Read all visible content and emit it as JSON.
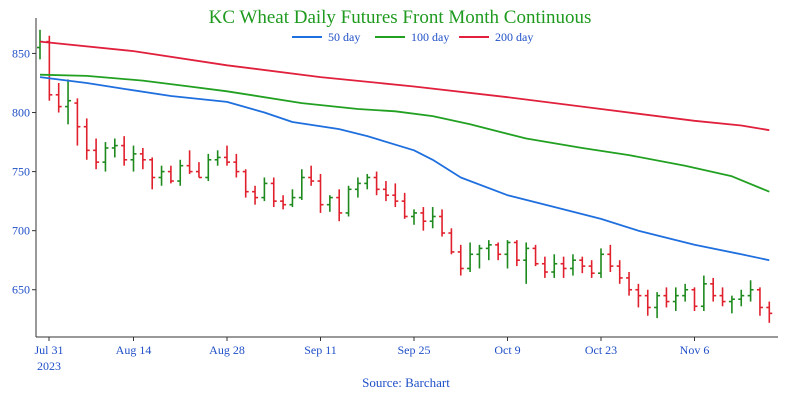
{
  "chart_data": {
    "type": "ohlc_with_moving_averages",
    "title": "KC Wheat Daily Futures Front Month Continuous",
    "source": "Source: Barchart",
    "xlabel": "",
    "ylabel": "",
    "ylim": [
      610,
      880
    ],
    "y_ticks": [
      650,
      700,
      750,
      800,
      850
    ],
    "x_ticks": [
      {
        "label": "Jul 31",
        "sublabel": "2023",
        "index": 0
      },
      {
        "label": "Aug 14",
        "index": 10
      },
      {
        "label": "Aug 28",
        "index": 20
      },
      {
        "label": "Sep 11",
        "index": 30
      },
      {
        "label": "Sep 25",
        "index": 40
      },
      {
        "label": "Oct 9",
        "index": 50
      },
      {
        "label": "Oct 23",
        "index": 60
      },
      {
        "label": "Nov 6",
        "index": 70
      }
    ],
    "grid": false,
    "legend_position": "top-center",
    "colors": {
      "up": "#1e8a1e",
      "down": "#e0202c",
      "ma50": "#1f6fde",
      "ma100": "#22a022",
      "ma200": "#e0203c"
    },
    "series": [
      {
        "name": "50 day",
        "color": "#1f6fde",
        "points": [
          [
            0,
            830
          ],
          [
            5,
            825
          ],
          [
            9,
            820
          ],
          [
            14,
            814
          ],
          [
            20,
            809
          ],
          [
            24,
            800
          ],
          [
            27,
            792
          ],
          [
            32,
            786
          ],
          [
            35,
            780
          ],
          [
            40,
            768
          ],
          [
            42,
            760
          ],
          [
            45,
            745
          ],
          [
            50,
            730
          ],
          [
            55,
            720
          ],
          [
            60,
            710
          ],
          [
            64,
            700
          ],
          [
            70,
            688
          ],
          [
            75,
            680
          ],
          [
            78,
            675
          ]
        ]
      },
      {
        "name": "100 day",
        "color": "#22a022",
        "points": [
          [
            0,
            832
          ],
          [
            5,
            831
          ],
          [
            11,
            827
          ],
          [
            16,
            822
          ],
          [
            20,
            818
          ],
          [
            28,
            808
          ],
          [
            34,
            803
          ],
          [
            38,
            801
          ],
          [
            42,
            797
          ],
          [
            46,
            790
          ],
          [
            52,
            778
          ],
          [
            58,
            770
          ],
          [
            63,
            764
          ],
          [
            69,
            755
          ],
          [
            74,
            746
          ],
          [
            78,
            733
          ]
        ]
      },
      {
        "name": "200 day",
        "color": "#e0203c",
        "points": [
          [
            0,
            860
          ],
          [
            10,
            852
          ],
          [
            20,
            840
          ],
          [
            30,
            830
          ],
          [
            40,
            822
          ],
          [
            50,
            813
          ],
          [
            60,
            803
          ],
          [
            70,
            793
          ],
          [
            75,
            789
          ],
          [
            78,
            785
          ]
        ]
      }
    ],
    "ohlc": [
      [
        0,
        855,
        870,
        845,
        860
      ],
      [
        1,
        860,
        865,
        810,
        815
      ],
      [
        2,
        815,
        825,
        800,
        805
      ],
      [
        3,
        805,
        828,
        790,
        810
      ],
      [
        4,
        808,
        812,
        772,
        788
      ],
      [
        5,
        788,
        795,
        760,
        768
      ],
      [
        6,
        768,
        778,
        752,
        758
      ],
      [
        7,
        758,
        775,
        750,
        770
      ],
      [
        8,
        770,
        778,
        762,
        772
      ],
      [
        9,
        772,
        780,
        755,
        760
      ],
      [
        10,
        760,
        772,
        750,
        765
      ],
      [
        11,
        765,
        770,
        752,
        760
      ],
      [
        12,
        760,
        762,
        735,
        745
      ],
      [
        13,
        745,
        755,
        738,
        750
      ],
      [
        14,
        750,
        755,
        740,
        742
      ],
      [
        15,
        742,
        760,
        738,
        755
      ],
      [
        16,
        755,
        768,
        748,
        750
      ],
      [
        17,
        750,
        758,
        745,
        745
      ],
      [
        18,
        745,
        765,
        742,
        760
      ],
      [
        19,
        760,
        768,
        755,
        762
      ],
      [
        20,
        762,
        772,
        755,
        758
      ],
      [
        21,
        758,
        765,
        745,
        750
      ],
      [
        22,
        750,
        752,
        728,
        733
      ],
      [
        23,
        733,
        738,
        722,
        728
      ],
      [
        24,
        728,
        745,
        725,
        740
      ],
      [
        25,
        740,
        745,
        720,
        725
      ],
      [
        26,
        725,
        730,
        718,
        722
      ],
      [
        27,
        722,
        735,
        720,
        728
      ],
      [
        28,
        728,
        752,
        726,
        745
      ],
      [
        29,
        745,
        755,
        738,
        742
      ],
      [
        30,
        742,
        748,
        715,
        722
      ],
      [
        31,
        722,
        730,
        716,
        728
      ],
      [
        32,
        728,
        735,
        708,
        715
      ],
      [
        33,
        715,
        738,
        712,
        735
      ],
      [
        34,
        735,
        745,
        728,
        740
      ],
      [
        35,
        740,
        748,
        735,
        745
      ],
      [
        36,
        745,
        750,
        730,
        735
      ],
      [
        37,
        735,
        742,
        725,
        730
      ],
      [
        38,
        730,
        740,
        720,
        725
      ],
      [
        39,
        725,
        732,
        710,
        712
      ],
      [
        40,
        712,
        718,
        705,
        715
      ],
      [
        41,
        715,
        720,
        700,
        708
      ],
      [
        42,
        708,
        720,
        702,
        712
      ],
      [
        43,
        712,
        718,
        695,
        698
      ],
      [
        44,
        698,
        702,
        680,
        682
      ],
      [
        45,
        682,
        688,
        662,
        668
      ],
      [
        46,
        668,
        690,
        665,
        680
      ],
      [
        47,
        680,
        688,
        668,
        685
      ],
      [
        48,
        685,
        692,
        675,
        688
      ],
      [
        49,
        688,
        690,
        675,
        680
      ],
      [
        50,
        680,
        692,
        668,
        690
      ],
      [
        51,
        690,
        692,
        670,
        675
      ],
      [
        52,
        675,
        690,
        655,
        685
      ],
      [
        53,
        685,
        688,
        670,
        672
      ],
      [
        54,
        672,
        678,
        660,
        665
      ],
      [
        55,
        665,
        680,
        660,
        672
      ],
      [
        56,
        672,
        678,
        660,
        668
      ],
      [
        57,
        668,
        680,
        662,
        675
      ],
      [
        58,
        675,
        678,
        664,
        670
      ],
      [
        59,
        670,
        675,
        660,
        664
      ],
      [
        60,
        664,
        685,
        660,
        680
      ],
      [
        61,
        680,
        688,
        665,
        670
      ],
      [
        62,
        670,
        675,
        655,
        660
      ],
      [
        63,
        660,
        665,
        645,
        650
      ],
      [
        64,
        650,
        655,
        635,
        645
      ],
      [
        65,
        645,
        650,
        628,
        635
      ],
      [
        66,
        635,
        648,
        626,
        645
      ],
      [
        67,
        645,
        652,
        635,
        640
      ],
      [
        68,
        640,
        652,
        632,
        645
      ],
      [
        69,
        645,
        655,
        640,
        650
      ],
      [
        70,
        650,
        652,
        632,
        636
      ],
      [
        71,
        636,
        662,
        632,
        655
      ],
      [
        72,
        655,
        660,
        640,
        645
      ],
      [
        73,
        645,
        652,
        636,
        640
      ],
      [
        74,
        640,
        645,
        630,
        642
      ],
      [
        75,
        642,
        650,
        636,
        645
      ],
      [
        76,
        645,
        658,
        640,
        650
      ],
      [
        77,
        650,
        652,
        628,
        635
      ],
      [
        78,
        635,
        640,
        622,
        630
      ]
    ]
  }
}
